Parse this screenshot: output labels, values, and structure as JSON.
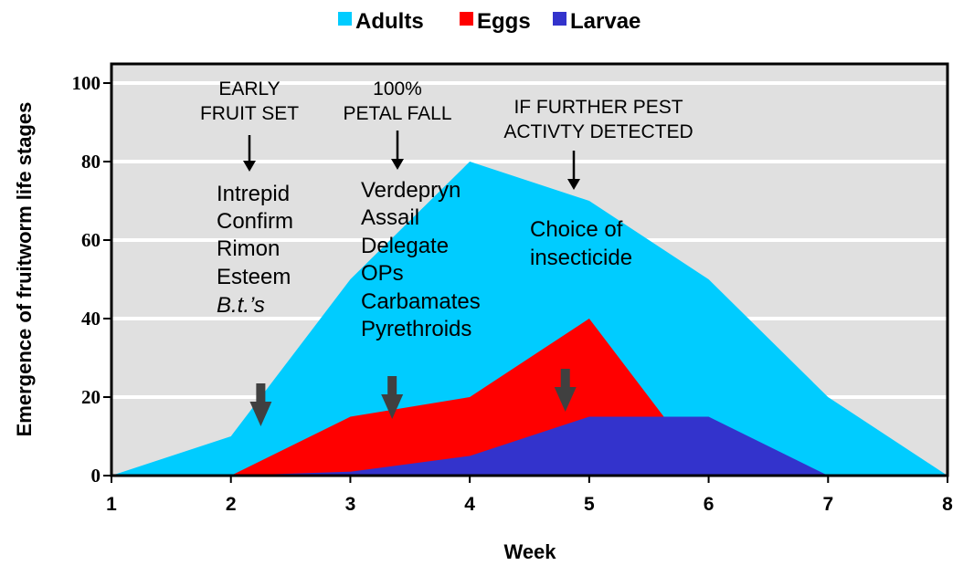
{
  "chart_data": {
    "type": "area",
    "title": "",
    "xlabel": "Week",
    "ylabel": "Emergence of fruitworm life stages",
    "xlim": [
      1,
      8
    ],
    "ylim": [
      0,
      100
    ],
    "x": [
      1,
      2,
      3,
      4,
      5,
      6,
      7,
      8
    ],
    "xticks": [
      "1",
      "2",
      "3",
      "4",
      "5",
      "6",
      "7",
      "8"
    ],
    "yticks": [
      "0",
      "20",
      "40",
      "60",
      "80",
      "100"
    ],
    "grid": true,
    "legend_position": "top",
    "series": [
      {
        "name": "Adults",
        "color": "#00CCFF",
        "values": [
          0,
          10,
          50,
          80,
          70,
          50,
          20,
          0
        ]
      },
      {
        "name": "Eggs",
        "color": "#FF0000",
        "values": [
          null,
          0,
          15,
          20,
          40,
          0,
          null,
          null
        ]
      },
      {
        "name": "Larvae",
        "color": "#3333CC",
        "values": [
          null,
          0,
          1,
          5,
          15,
          15,
          0,
          null
        ]
      }
    ],
    "annotations": [
      {
        "label_lines": [
          "EARLY",
          "FRUIT SET"
        ],
        "products": [
          "Intrepid",
          "Confirm",
          "Rimon",
          "Esteem",
          "B.t.’s"
        ],
        "spray_week": 2.25
      },
      {
        "label_lines": [
          "100%",
          "PETAL FALL"
        ],
        "products": [
          "Verdepryn",
          "Assail",
          "Delegate",
          "OPs",
          "Carbamates",
          "Pyrethroids"
        ],
        "spray_week": 3.35
      },
      {
        "label_lines": [
          "IF FURTHER PEST",
          "ACTIVTY DETECTED"
        ],
        "products": [
          "Choice of",
          "insecticide"
        ],
        "spray_week": 4.8
      }
    ],
    "colors": {
      "plot_background": "#E0E0E0",
      "gridline": "#FFFFFF",
      "spray_arrow": "#404040"
    }
  }
}
